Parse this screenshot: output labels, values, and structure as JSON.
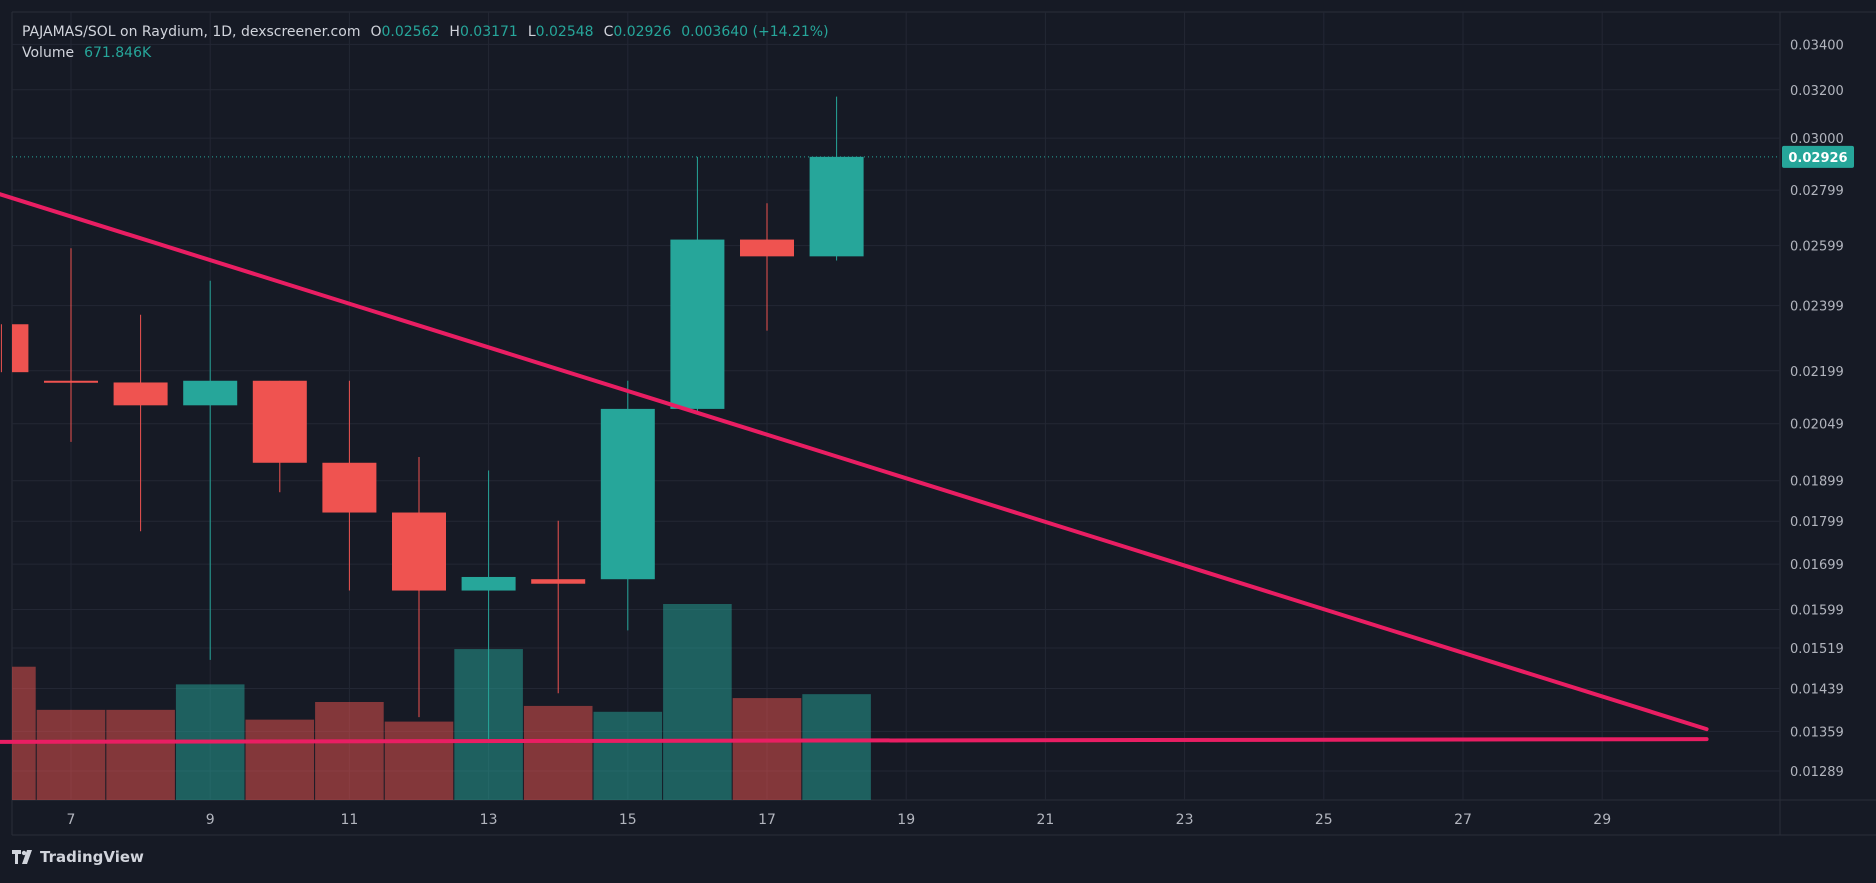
{
  "header": {
    "title": "PAJAMAS/SOL on Raydium, 1D, dexscreener.com",
    "open_label": "O",
    "open": "0.02562",
    "high_label": "H",
    "high": "0.03171",
    "low_label": "L",
    "low": "0.02548",
    "close_label": "C",
    "close": "0.02926",
    "change": "0.003640 (+14.21%)",
    "volume_label": "Volume",
    "volume": "671.846K"
  },
  "brand": {
    "name": "TradingView",
    "icon": "tradingview-logo-icon"
  },
  "colors": {
    "up": "#26a69a",
    "down": "#ef5350",
    "trendline": "#e91e63",
    "background": "#161a25",
    "grid": "#232734",
    "text": "#d1d4dc"
  },
  "chart_data": {
    "type": "candlestick",
    "price_scale": "log",
    "x_ticks": [
      "7",
      "9",
      "11",
      "13",
      "15",
      "17",
      "19",
      "21",
      "23",
      "25",
      "27",
      "29"
    ],
    "x_tick_days": [
      7,
      9,
      11,
      13,
      15,
      17,
      19,
      21,
      23,
      25,
      27,
      29
    ],
    "y_ticks": [
      "0.03400",
      "0.03200",
      "0.03000",
      "0.02799",
      "0.02599",
      "0.02399",
      "0.02199",
      "0.02049",
      "0.01899",
      "0.01799",
      "0.01699",
      "0.01599",
      "0.01519",
      "0.01439",
      "0.01359",
      "0.01289"
    ],
    "y_tick_values": [
      0.034,
      0.032,
      0.03,
      0.02799,
      0.02599,
      0.02399,
      0.02199,
      0.02049,
      0.01899,
      0.01799,
      0.01699,
      0.01599,
      0.01519,
      0.01439,
      0.01359,
      0.01289
    ],
    "ylim": [
      0.0124,
      0.0355
    ],
    "last_price_label": "0.02926",
    "last_price": 0.02926,
    "candles": [
      {
        "day": 6,
        "open": 0.0234,
        "high": 0.0234,
        "low": 0.02195,
        "close": 0.02195
      },
      {
        "day": 7,
        "open": 0.0217,
        "high": 0.0259,
        "low": 0.02,
        "close": 0.02165
      },
      {
        "day": 8,
        "open": 0.02165,
        "high": 0.0237,
        "low": 0.01775,
        "close": 0.021
      },
      {
        "day": 9,
        "open": 0.021,
        "high": 0.0248,
        "low": 0.01495,
        "close": 0.0217
      },
      {
        "day": 10,
        "open": 0.0217,
        "high": 0.0217,
        "low": 0.0187,
        "close": 0.01945
      },
      {
        "day": 11,
        "open": 0.01945,
        "high": 0.0217,
        "low": 0.0164,
        "close": 0.0182
      },
      {
        "day": 12,
        "open": 0.0182,
        "high": 0.0196,
        "low": 0.01385,
        "close": 0.0164
      },
      {
        "day": 13,
        "open": 0.0164,
        "high": 0.01925,
        "low": 0.01345,
        "close": 0.0167
      },
      {
        "day": 14,
        "open": 0.01665,
        "high": 0.018,
        "low": 0.0143,
        "close": 0.01655
      },
      {
        "day": 15,
        "open": 0.01665,
        "high": 0.0217,
        "low": 0.01555,
        "close": 0.0209
      },
      {
        "day": 16,
        "open": 0.0209,
        "high": 0.02926,
        "low": 0.0208,
        "close": 0.0262
      },
      {
        "day": 17,
        "open": 0.0262,
        "high": 0.0275,
        "low": 0.0232,
        "close": 0.02562
      },
      {
        "day": 18,
        "open": 0.02562,
        "high": 0.03171,
        "low": 0.02548,
        "close": 0.02926
      }
    ],
    "volumes": [
      {
        "day": 6,
        "value": 0.68,
        "direction": "down"
      },
      {
        "day": 7,
        "value": 0.46,
        "direction": "down"
      },
      {
        "day": 8,
        "value": 0.46,
        "direction": "down"
      },
      {
        "day": 9,
        "value": 0.59,
        "direction": "up"
      },
      {
        "day": 10,
        "value": 0.41,
        "direction": "down"
      },
      {
        "day": 11,
        "value": 0.5,
        "direction": "down"
      },
      {
        "day": 12,
        "value": 0.4,
        "direction": "down"
      },
      {
        "day": 13,
        "value": 0.77,
        "direction": "up"
      },
      {
        "day": 14,
        "value": 0.48,
        "direction": "down"
      },
      {
        "day": 15,
        "value": 0.45,
        "direction": "up"
      },
      {
        "day": 16,
        "value": 1.0,
        "direction": "up"
      },
      {
        "day": 17,
        "value": 0.52,
        "direction": "down"
      },
      {
        "day": 18,
        "value": 0.54,
        "direction": "up"
      }
    ],
    "trendlines": [
      {
        "name": "descending",
        "from": {
          "day": 5.9,
          "price": 0.0279
        },
        "to": {
          "day": 30.5,
          "price": 0.01363
        }
      },
      {
        "name": "support",
        "from": {
          "day": 5.9,
          "price": 0.0134
        },
        "to": {
          "day": 30.5,
          "price": 0.01345
        }
      }
    ]
  }
}
